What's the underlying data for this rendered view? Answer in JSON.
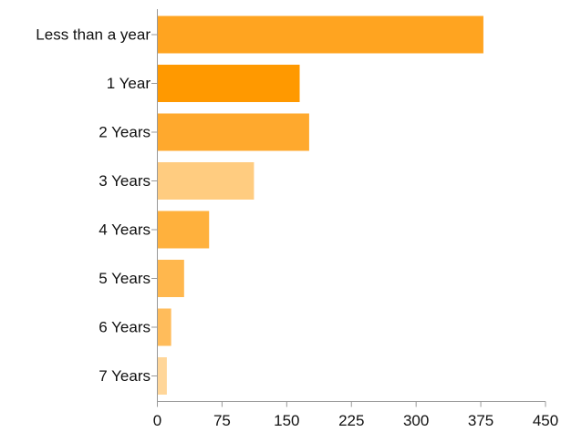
{
  "chart_data": {
    "type": "bar",
    "orientation": "horizontal",
    "title": "",
    "xlabel": "",
    "ylabel": "",
    "categories": [
      "Less than a year",
      "1 Year",
      "2 Years",
      "3 Years",
      "4 Years",
      "5 Years",
      "6 Years",
      "7 Years"
    ],
    "values": [
      378,
      165,
      176,
      112,
      60,
      31,
      16,
      11
    ],
    "colors": [
      "#ffa420",
      "#ff9900",
      "#ffa92d",
      "#ffcc80",
      "#ffb13d",
      "#ffb74d",
      "#ffbc5b",
      "#ffd699"
    ],
    "xlim": [
      0,
      450
    ],
    "xticks": [
      "0",
      "75",
      "150",
      "225",
      "300",
      "375",
      "450"
    ],
    "grid": false,
    "legend": "none"
  }
}
